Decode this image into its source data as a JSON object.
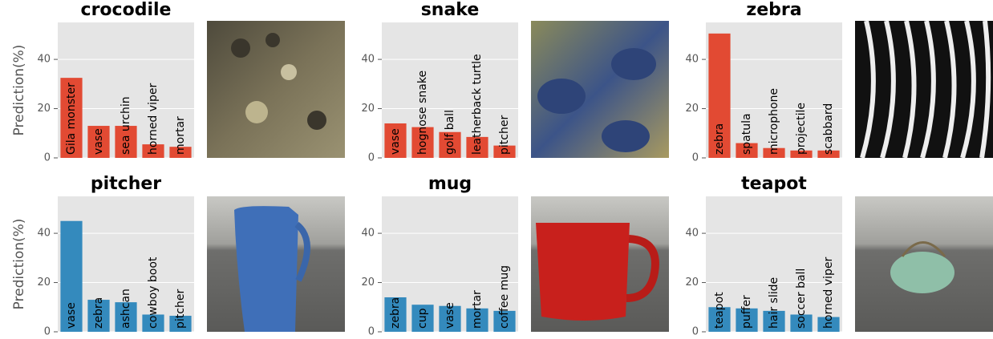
{
  "chart_data": [
    {
      "type": "bar",
      "title": "crocodile",
      "ylabel": "Prediction(%)",
      "categories": [
        "Gila monster",
        "vase",
        "sea urchin",
        "horned viper",
        "mortar"
      ],
      "values": [
        32.5,
        13,
        13,
        5.5,
        4.5
      ],
      "color": "#e24a33",
      "ylim": [
        0,
        55
      ],
      "yticks": [
        0,
        20,
        40
      ],
      "grid": true
    },
    {
      "type": "bar",
      "title": "snake",
      "categories": [
        "vase",
        "hognose snake",
        "golf ball",
        "leatherback turtle",
        "pitcher"
      ],
      "values": [
        14,
        12.5,
        10.5,
        8.5,
        5
      ],
      "color": "#e24a33",
      "ylim": [
        0,
        55
      ],
      "yticks": [
        0,
        20,
        40
      ],
      "grid": true
    },
    {
      "type": "bar",
      "title": "zebra",
      "categories": [
        "zebra",
        "spatula",
        "microphone",
        "projectile",
        "scabbard"
      ],
      "values": [
        50.5,
        6,
        4,
        3,
        3
      ],
      "color": "#e24a33",
      "ylim": [
        0,
        55
      ],
      "yticks": [
        0,
        20,
        40
      ],
      "grid": true
    },
    {
      "type": "bar",
      "title": "pitcher",
      "ylabel": "Prediction(%)",
      "categories": [
        "vase",
        "zebra",
        "ashcan",
        "cowboy boot",
        "pitcher"
      ],
      "values": [
        45,
        13,
        12,
        7,
        6.5
      ],
      "color": "#348abd",
      "ylim": [
        0,
        55
      ],
      "yticks": [
        0,
        20,
        40
      ],
      "grid": true
    },
    {
      "type": "bar",
      "title": "mug",
      "categories": [
        "zebra",
        "cup",
        "vase",
        "mortar",
        "coffee mug"
      ],
      "values": [
        14,
        11,
        10.5,
        9.5,
        8.5
      ],
      "color": "#348abd",
      "ylim": [
        0,
        55
      ],
      "yticks": [
        0,
        20,
        40
      ],
      "grid": true
    },
    {
      "type": "bar",
      "title": "teapot",
      "categories": [
        "teapot",
        "puffer",
        "hair slide",
        "soccer ball",
        "horned viper"
      ],
      "values": [
        10,
        9.5,
        8.5,
        7,
        6
      ],
      "color": "#348abd",
      "ylim": [
        0,
        55
      ],
      "yticks": [
        0,
        20,
        40
      ],
      "grid": true
    }
  ]
}
